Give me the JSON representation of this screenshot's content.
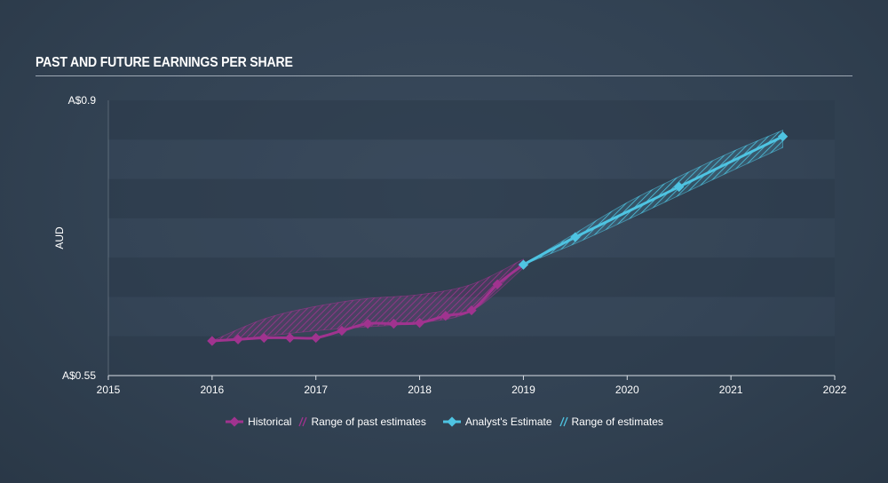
{
  "chart_data": {
    "type": "line",
    "title": "PAST AND FUTURE EARNINGS PER SHARE",
    "ylabel": "AUD",
    "xlim": [
      2015,
      2022
    ],
    "ylim": [
      0.55,
      0.9
    ],
    "y_tick_labels": [
      "A$0.55",
      "A$0.9"
    ],
    "x_ticks": [
      "2015",
      "2016",
      "2017",
      "2018",
      "2019",
      "2020",
      "2021",
      "2022"
    ],
    "series": [
      {
        "name": "Historical",
        "color": "#a0338f",
        "x": [
          2016.0,
          2016.25,
          2016.5,
          2016.75,
          2017.0,
          2017.25,
          2017.5,
          2017.75,
          2018.0,
          2018.25,
          2018.5,
          2018.75,
          2019.0
        ],
        "y": [
          0.594,
          0.596,
          0.598,
          0.598,
          0.598,
          0.607,
          0.616,
          0.616,
          0.617,
          0.626,
          0.633,
          0.666,
          0.691
        ]
      },
      {
        "name": "Analyst's Estimate",
        "color": "#4ec4e2",
        "x": [
          2019.0,
          2019.5,
          2020.5,
          2021.5
        ],
        "y": [
          0.691,
          0.726,
          0.79,
          0.854
        ]
      }
    ],
    "ranges": [
      {
        "name": "Range of past estimates",
        "color": "#a0338f",
        "x": [
          2016.0,
          2016.5,
          2017.0,
          2017.5,
          2018.0,
          2018.5,
          2019.0
        ],
        "high": [
          0.594,
          0.622,
          0.638,
          0.648,
          0.653,
          0.666,
          0.698
        ],
        "low": [
          0.594,
          0.6,
          0.607,
          0.612,
          0.617,
          0.632,
          0.687
        ]
      },
      {
        "name": "Range of estimates",
        "color": "#4ec4e2",
        "x": [
          2019.0,
          2019.5,
          2020.0,
          2020.5,
          2021.0,
          2021.5
        ],
        "high": [
          0.691,
          0.731,
          0.77,
          0.803,
          0.834,
          0.862
        ],
        "low": [
          0.691,
          0.718,
          0.748,
          0.779,
          0.81,
          0.84
        ]
      }
    ],
    "legend": [
      "Historical",
      "Range of past estimates",
      "Analyst's Estimate",
      "Range of estimates"
    ]
  }
}
